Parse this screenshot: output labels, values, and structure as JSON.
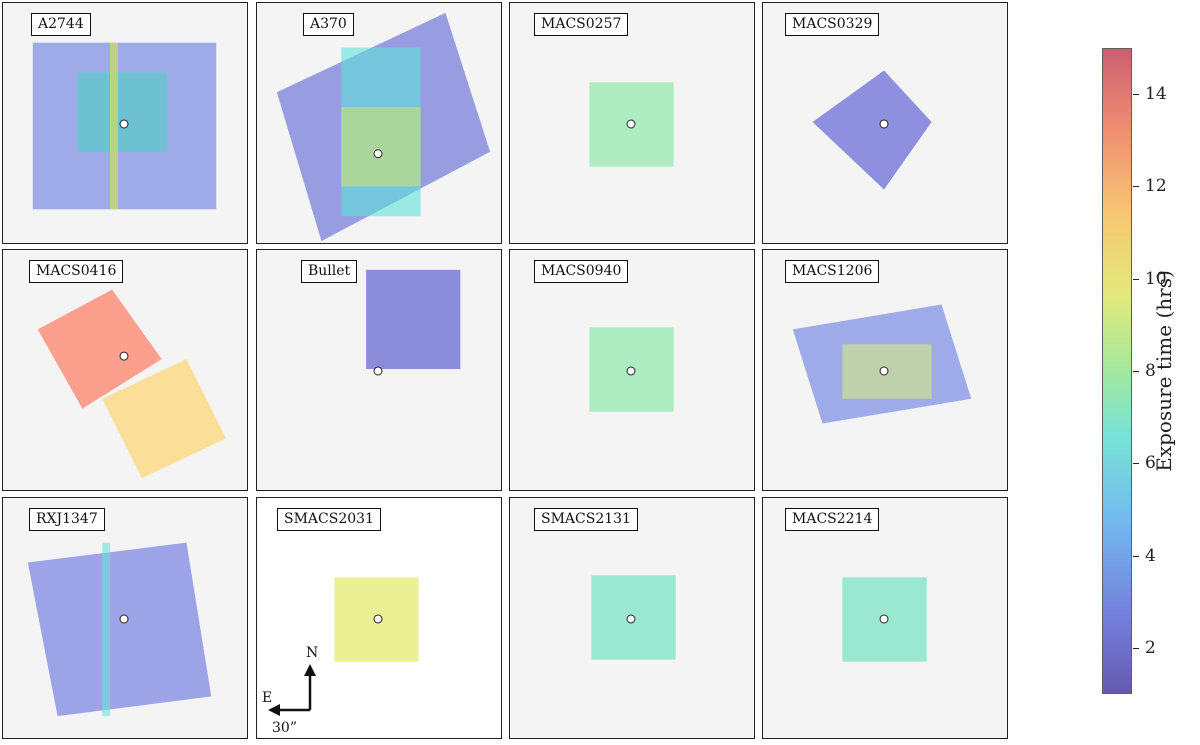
{
  "figure": {
    "colorbar": {
      "title": "Exposure time (hrs)",
      "ticks": [
        "2",
        "4",
        "6",
        "8",
        "10",
        "12",
        "14"
      ],
      "tick_values": [
        2,
        4,
        6,
        8,
        10,
        12,
        14
      ],
      "range": [
        1,
        15
      ],
      "colormap": "jet"
    },
    "compass": {
      "north": "N",
      "east": "E",
      "scale": "30”"
    },
    "panels": [
      {
        "name": "A2744",
        "color": "#5a6fe0",
        "second_color": "#4fd0c0"
      },
      {
        "name": "A370",
        "color": "#4a55d0",
        "second_color": "#5fe0d8"
      },
      {
        "name": "MACS0257",
        "color": "#7fe6a0"
      },
      {
        "name": "MACS0329",
        "color": "#4a4cd0"
      },
      {
        "name": "MACS0416",
        "color": "#ff7a60",
        "second_color": "#ffcf5a"
      },
      {
        "name": "Bullet",
        "color": "#4548c8"
      },
      {
        "name": "MACS0940",
        "color": "#7fe6a0"
      },
      {
        "name": "MACS1206",
        "color": "#5a6fe0",
        "second_color": "#d8f07a"
      },
      {
        "name": "RXJ1347",
        "color": "#5560dc"
      },
      {
        "name": "SMACS2031",
        "color": "#e2e85a"
      },
      {
        "name": "SMACS2131",
        "color": "#5fe0b8"
      },
      {
        "name": "MACS2214",
        "color": "#5fe0b8"
      }
    ]
  }
}
